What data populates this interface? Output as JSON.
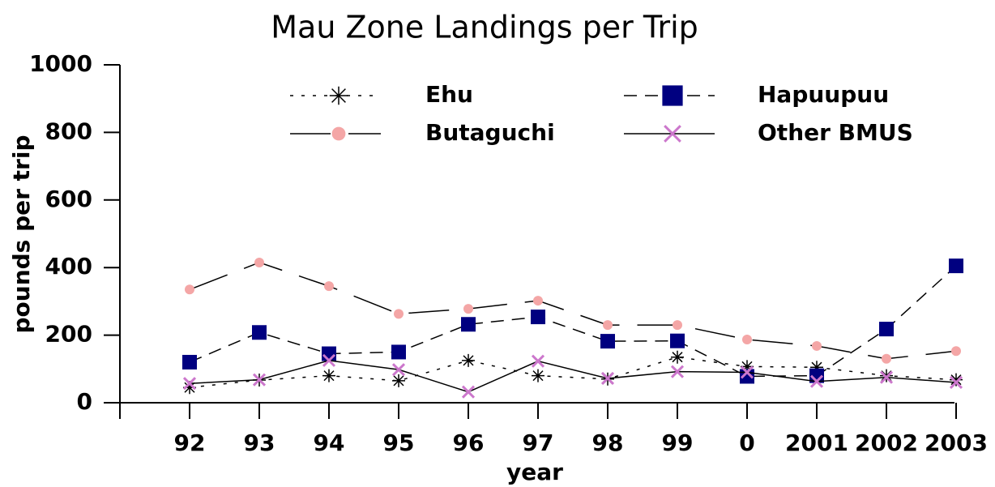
{
  "chart_data": {
    "type": "line",
    "title": "Mau Zone Landings per Trip",
    "x_label": "year",
    "y_label": "pounds per trip",
    "categories": [
      "92",
      "93",
      "94",
      "95",
      "96",
      "97",
      "98",
      "99",
      "0",
      "2001",
      "2002",
      "2003"
    ],
    "ylim": [
      0,
      1000
    ],
    "yticks": [
      0,
      200,
      400,
      600,
      800,
      1000
    ],
    "series": [
      {
        "name": "Ehu",
        "color": "#000000",
        "marker": "star",
        "line_style": "dotted",
        "values": [
          45,
          67,
          80,
          65,
          125,
          80,
          70,
          135,
          107,
          105,
          80,
          68
        ]
      },
      {
        "name": "Hapuupuu",
        "color": "#000080",
        "marker": "square",
        "line_style": "dashed",
        "values": [
          120,
          208,
          145,
          150,
          232,
          254,
          182,
          183,
          78,
          80,
          218,
          405
        ]
      },
      {
        "name": "Butaguchi",
        "color": "#f4a6a6",
        "marker": "circle",
        "line_style": "long-dashed",
        "values": [
          335,
          415,
          345,
          263,
          278,
          302,
          230,
          230,
          187,
          168,
          130,
          153
        ]
      },
      {
        "name": "Other BMUS",
        "color": "#cc77cc",
        "marker": "x",
        "line_style": "solid",
        "values": [
          57,
          68,
          125,
          98,
          32,
          123,
          72,
          92,
          90,
          63,
          75,
          60
        ]
      }
    ]
  }
}
